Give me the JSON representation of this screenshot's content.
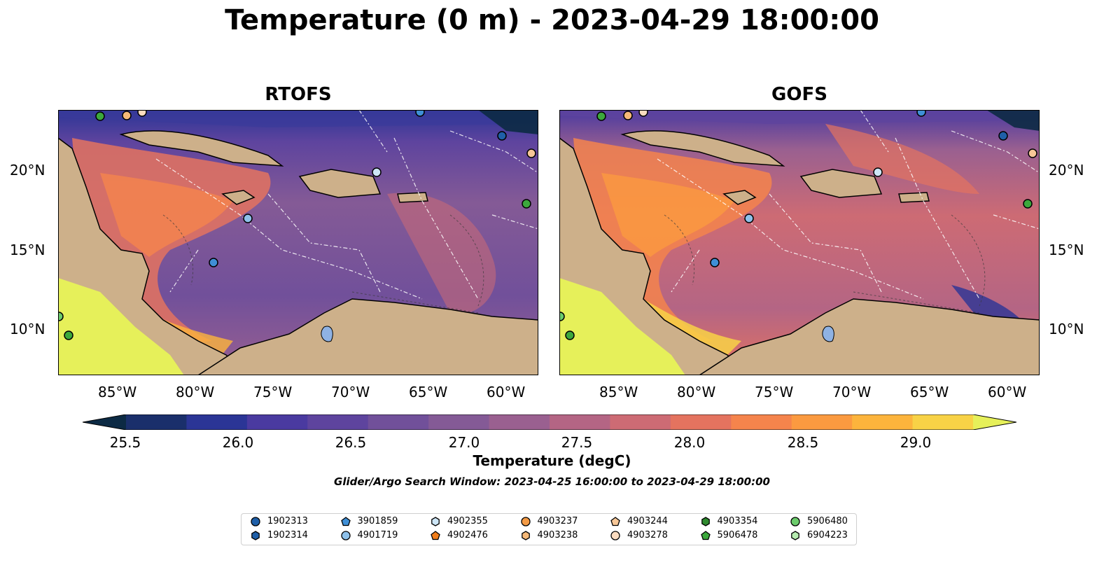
{
  "title": "Temperature (0 m) - 2023-04-29 18:00:00",
  "panels": [
    {
      "title": "RTOFS"
    },
    {
      "title": "GOFS"
    }
  ],
  "lon_labels": [
    "85°W",
    "80°W",
    "75°W",
    "70°W",
    "65°W",
    "60°W"
  ],
  "lat_labels": [
    "20°N",
    "15°N",
    "10°N"
  ],
  "colorbar": {
    "ticks": [
      "25.5",
      "26.0",
      "26.5",
      "27.0",
      "27.5",
      "28.0",
      "28.5",
      "29.0"
    ],
    "label": "Temperature (degC)",
    "colors": [
      "#0c2a44",
      "#1a2f6b",
      "#2b3596",
      "#4a3aa0",
      "#5e449e",
      "#71509a",
      "#845a96",
      "#9a6090",
      "#b46584",
      "#cd6b74",
      "#e4735f",
      "#f5844c",
      "#fb9a40",
      "#fcb43c",
      "#f8d246",
      "#e6f05a"
    ]
  },
  "search_window": "Glider/Argo Search Window: 2023-04-25 16:00:00 to 2023-04-29 18:00:00",
  "legend": [
    {
      "id": "1902313",
      "marker": "circle",
      "color": "#1f5fa8"
    },
    {
      "id": "1902314",
      "marker": "hexagon",
      "color": "#1f5fa8"
    },
    {
      "id": "3901859",
      "marker": "pentagon",
      "color": "#3f8fd6"
    },
    {
      "id": "4901719",
      "marker": "circle",
      "color": "#8ec1ea"
    },
    {
      "id": "4902355",
      "marker": "hexagon",
      "color": "#cde6f7"
    },
    {
      "id": "4902476",
      "marker": "pentagon",
      "color": "#f07d1a"
    },
    {
      "id": "4903237",
      "marker": "circle",
      "color": "#f39a45"
    },
    {
      "id": "4903238",
      "marker": "hexagon",
      "color": "#f6b978"
    },
    {
      "id": "4903244",
      "marker": "pentagon",
      "color": "#f7c797"
    },
    {
      "id": "4903278",
      "marker": "circle",
      "color": "#fbdcc0"
    },
    {
      "id": "4903354",
      "marker": "hexagon",
      "color": "#2f8a2f"
    },
    {
      "id": "5906478",
      "marker": "pentagon",
      "color": "#3ca83c"
    },
    {
      "id": "5906480",
      "marker": "circle",
      "color": "#6ccc6c"
    },
    {
      "id": "6904223",
      "marker": "hexagon",
      "color": "#b6ecb0"
    }
  ]
}
